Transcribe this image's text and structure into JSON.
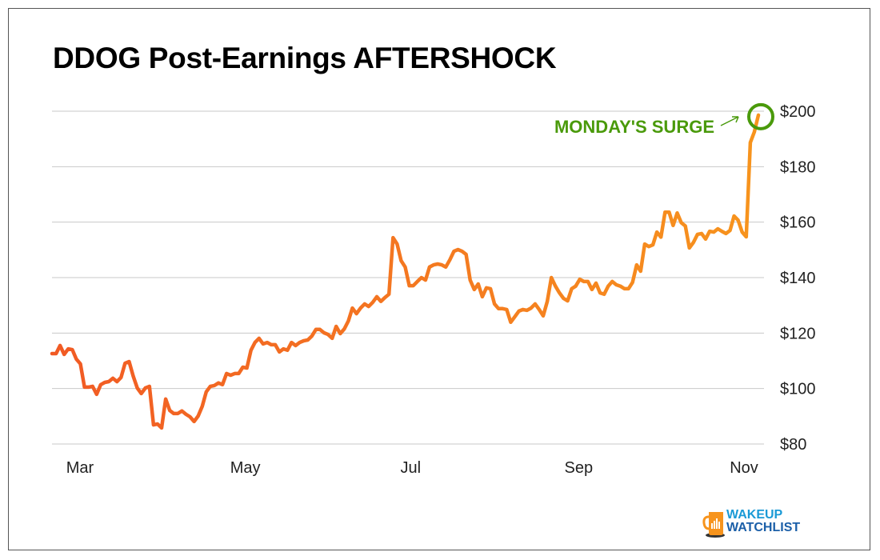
{
  "chart_data": {
    "type": "line",
    "title": "DDOG Post-Earnings AFTERSHOCK",
    "xlabel": "",
    "ylabel": "",
    "ylim": [
      80,
      200
    ],
    "yticks": [
      80,
      100,
      120,
      140,
      160,
      180,
      200
    ],
    "ytick_labels": [
      "$80",
      "$100",
      "$120",
      "$140",
      "$160",
      "$180",
      "$200"
    ],
    "xlim_days_from_mar1": [
      -10,
      250
    ],
    "xticks_days": [
      0,
      61,
      122,
      184,
      245
    ],
    "xtick_labels": [
      "Mar",
      "May",
      "Jul",
      "Sep",
      "Nov"
    ],
    "grid": "horizontal",
    "series": [
      {
        "name": "DDOG",
        "colors": [
          "#f15a24",
          "#f7941d"
        ],
        "values": [
          112.6,
          112.6,
          115.5,
          112.3,
          114.3,
          114,
          110.6,
          108.9,
          100.5,
          100.5,
          100.8,
          97.9,
          101.4,
          102.2,
          102.5,
          103.7,
          102.5,
          104,
          109.1,
          109.7,
          104.5,
          100.2,
          98.2,
          100.2,
          100.8,
          86.9,
          87.2,
          85.8,
          96.2,
          92.1,
          91,
          91,
          91.9,
          90.7,
          89.8,
          88.1,
          90.1,
          93.6,
          98.8,
          100.8,
          101.1,
          102,
          101.4,
          105.4,
          104.8,
          105.4,
          105.4,
          107.7,
          107.4,
          113.8,
          116.6,
          118.1,
          116.1,
          116.6,
          115.8,
          115.8,
          113.2,
          114.3,
          113.8,
          116.6,
          115.5,
          116.6,
          117.2,
          117.5,
          118.9,
          121.3,
          121.3,
          120.1,
          119.5,
          118.1,
          122.4,
          119.8,
          121.5,
          124.4,
          129,
          127,
          129,
          130.5,
          129.6,
          131.1,
          133.1,
          131.4,
          132.8,
          134,
          154.4,
          152.1,
          146.1,
          143.8,
          137.1,
          137.1,
          138.6,
          140,
          139.1,
          143.8,
          144.6,
          144.9,
          144.6,
          143.8,
          146.4,
          149.5,
          150.1,
          149.5,
          148.4,
          139.1,
          135.7,
          137.7,
          133.1,
          136.3,
          136,
          130.5,
          128.8,
          128.8,
          128.5,
          123.9,
          125.9,
          127.9,
          128.5,
          128.2,
          129,
          130.5,
          128.5,
          126.2,
          131.4,
          140,
          136.9,
          134.5,
          132.5,
          131.6,
          136,
          136.9,
          139.4,
          138.6,
          138.6,
          135.7,
          138,
          134.5,
          134,
          136.9,
          138.6,
          137.4,
          136.9,
          136,
          136,
          138.3,
          144.6,
          142.3,
          152.1,
          151.2,
          151.8,
          156.4,
          154.6,
          163.6,
          163.6,
          158.8,
          163.3,
          159.8,
          158.6,
          150.7,
          152.7,
          155.6,
          155.9,
          153.9,
          156.7,
          156.4,
          157.6,
          156.7,
          155.9,
          157,
          162.2,
          160.7,
          156.4,
          154.7,
          188.7,
          192.5,
          198.6
        ]
      }
    ],
    "annotations": [
      {
        "text": "MONDAY'S SURGE",
        "target": "last point",
        "color": "#4a9a0b"
      }
    ]
  },
  "logo": {
    "line1": "WAKEUP",
    "line2": "WATCHLIST"
  }
}
